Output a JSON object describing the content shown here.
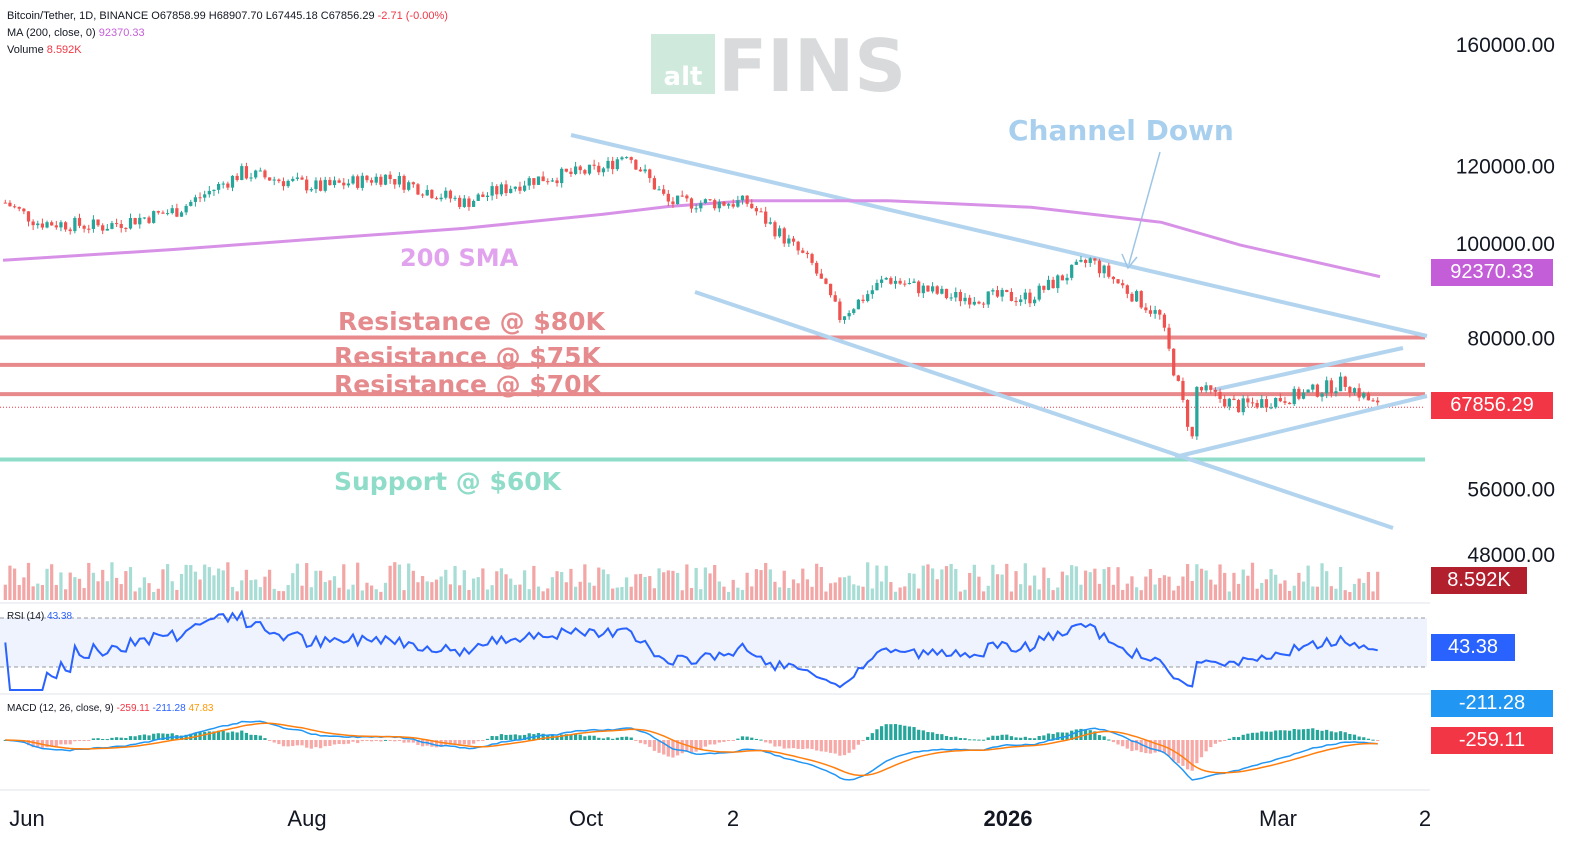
{
  "header": {
    "symbol": "Bitcoin/Tether, 1D, BINANCE",
    "o": "O67858.99",
    "h": "H68907.70",
    "l": "L67445.18",
    "c": "C67856.29",
    "chg": "-2.71 (-0.00%)",
    "ma_label": "MA (200, close, 0)",
    "ma_value": "92370.33",
    "volume_label": "Volume",
    "volume_value": "8.592K"
  },
  "watermark": {
    "small": "alt",
    "big": "FINS"
  },
  "price_axis": {
    "ticks": [
      "160000.00",
      "120000.00",
      "100000.00",
      "80000.00",
      "56000.00",
      "48000.00"
    ],
    "tick_values": [
      160000,
      120000,
      100000,
      80000,
      56000,
      48000
    ],
    "scale": "log"
  },
  "time_axis": {
    "labels": [
      "Jun",
      "Aug",
      "Oct",
      "2",
      "2026",
      "Mar",
      "2"
    ],
    "bold": [
      false,
      false,
      false,
      false,
      true,
      false,
      false
    ]
  },
  "tags": {
    "ma": {
      "text": "92370.33",
      "color": "#c45ed8"
    },
    "price": {
      "text": "67856.29",
      "color": "#f23645"
    },
    "volume": {
      "text": "8.592K",
      "color": "#b2202e"
    },
    "rsi": {
      "text": "43.38",
      "color": "#2962ff"
    },
    "macd_line": {
      "text": "-211.28",
      "color": "#2196f3"
    },
    "macd_signal": {
      "text": "-259.11",
      "color": "#f23645"
    }
  },
  "annotations": {
    "channel": "Channel Down",
    "sma": "200 SMA",
    "r80": "Resistance @ $80K",
    "r75": "Resistance @ $75K",
    "r70": "Resistance @ $70K",
    "support": "Support @ $60K"
  },
  "rsi": {
    "label": "RSI (14)",
    "value": "43.38"
  },
  "macd": {
    "label": "MACD (12, 26, close, 9)",
    "hist": "-259.11",
    "macd": "-211.28",
    "signal": "47.83"
  },
  "chart_data": {
    "type": "candlestick",
    "title": "Bitcoin/Tether, 1D, BINANCE",
    "x": [
      "2025-05-25",
      "2025-06-01",
      "2025-06-15",
      "2025-07-01",
      "2025-07-15",
      "2025-08-01",
      "2025-08-15",
      "2025-09-01",
      "2025-09-15",
      "2025-10-01",
      "2025-10-06",
      "2025-10-15",
      "2025-11-01",
      "2025-11-15",
      "2025-11-21",
      "2025-12-01",
      "2025-12-15",
      "2026-01-01",
      "2026-01-14",
      "2026-01-29",
      "2026-02-05",
      "2026-02-06",
      "2026-02-15",
      "2026-03-01",
      "2026-03-10",
      "2026-03-17"
    ],
    "close": [
      110000,
      105000,
      104000,
      108000,
      118000,
      114000,
      117000,
      110000,
      116000,
      119000,
      124000,
      110000,
      110000,
      95000,
      84000,
      92000,
      88000,
      88000,
      96000,
      84000,
      63000,
      71000,
      68000,
      70000,
      72000,
      67856.29
    ],
    "series": [
      {
        "name": "MA (200, close, 0)",
        "x": [
          "2025-05-25",
          "2025-07-01",
          "2025-08-01",
          "2025-09-01",
          "2025-10-01",
          "2025-10-15",
          "2025-11-01",
          "2025-12-01",
          "2026-01-01",
          "2026-01-29",
          "2026-02-15",
          "2026-03-17"
        ],
        "values": [
          96000,
          98500,
          101000,
          103500,
          107000,
          109000,
          110500,
          110500,
          108800,
          105000,
          99500,
          92370.33
        ]
      }
    ],
    "yscale": "log",
    "ylim": [
      44000,
      168000
    ],
    "lines": [
      {
        "name": "Resistance @ $80K",
        "y": 80000
      },
      {
        "name": "Resistance @ $75K",
        "y": 75000
      },
      {
        "name": "Resistance @ $70K",
        "y": 70000
      },
      {
        "name": "Support @ $60K",
        "y": 60000
      }
    ]
  }
}
